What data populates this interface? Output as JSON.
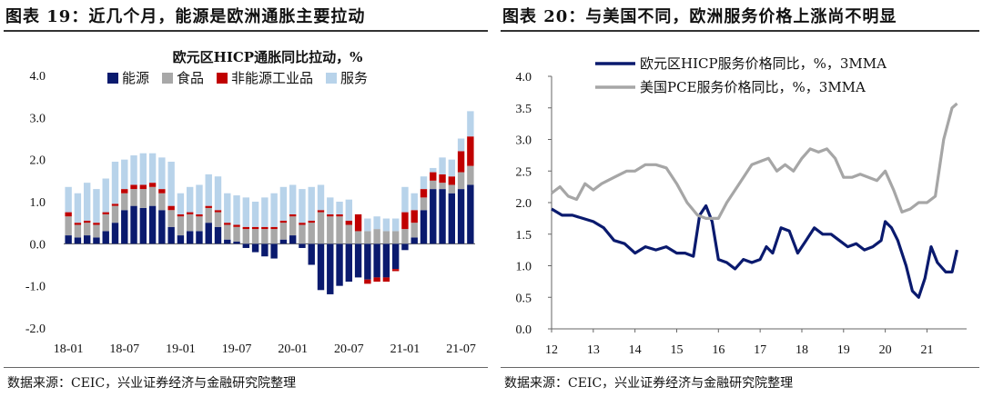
{
  "left": {
    "figure_title": "图表 19：近几个月，能源是欧洲通胀主要拉动",
    "source": "数据来源：CEIC，兴业证券经济与金融研究院整理",
    "chart_data": {
      "type": "bar",
      "stacked": true,
      "title": "欧元区HICP通胀同比拉动，%",
      "ylim": [
        -2.0,
        4.0
      ],
      "yticks": [
        "4.0",
        "3.0",
        "2.0",
        "1.0",
        "0.0",
        "-1.0",
        "-2.0"
      ],
      "ytick_values": [
        4,
        3,
        2,
        1,
        0,
        -1,
        -2
      ],
      "xtick_labels": [
        "18-01",
        "18-07",
        "19-01",
        "19-07",
        "20-01",
        "20-07",
        "21-01",
        "21-07"
      ],
      "xtick_index": [
        0,
        6,
        12,
        18,
        24,
        30,
        36,
        42
      ],
      "categories": [
        "18-01",
        "18-02",
        "18-03",
        "18-04",
        "18-05",
        "18-06",
        "18-07",
        "18-08",
        "18-09",
        "18-10",
        "18-11",
        "18-12",
        "19-01",
        "19-02",
        "19-03",
        "19-04",
        "19-05",
        "19-06",
        "19-07",
        "19-08",
        "19-09",
        "19-10",
        "19-11",
        "19-12",
        "20-01",
        "20-02",
        "20-03",
        "20-04",
        "20-05",
        "20-06",
        "20-07",
        "20-08",
        "20-09",
        "20-10",
        "20-11",
        "20-12",
        "21-01",
        "21-02",
        "21-03",
        "21-04",
        "21-05",
        "21-06",
        "21-07",
        "21-08"
      ],
      "legend": [
        "能源",
        "食品",
        "非能源工业品",
        "服务"
      ],
      "series": [
        {
          "name": "能源",
          "color": "#0a1a6e",
          "values": [
            0.2,
            0.15,
            0.2,
            0.15,
            0.3,
            0.5,
            0.8,
            0.9,
            0.85,
            0.9,
            0.8,
            0.4,
            0.2,
            0.3,
            0.3,
            0.5,
            0.4,
            0.1,
            0.05,
            -0.1,
            -0.2,
            -0.3,
            -0.35,
            0.1,
            0.2,
            -0.1,
            -0.5,
            -1.1,
            -1.2,
            -1.0,
            -0.9,
            -0.8,
            -0.85,
            -0.8,
            -0.8,
            -0.6,
            -0.15,
            0.15,
            0.8,
            1.3,
            1.3,
            1.2,
            1.3,
            1.4
          ]
        },
        {
          "name": "食品",
          "color": "#a8a8a8",
          "values": [
            0.45,
            0.3,
            0.3,
            0.3,
            0.4,
            0.4,
            0.4,
            0.4,
            0.45,
            0.45,
            0.4,
            0.4,
            0.45,
            0.4,
            0.35,
            0.35,
            0.35,
            0.35,
            0.35,
            0.35,
            0.35,
            0.35,
            0.35,
            0.4,
            0.45,
            0.45,
            0.5,
            0.75,
            0.65,
            0.65,
            0.45,
            0.3,
            0.3,
            0.35,
            0.3,
            0.3,
            0.35,
            0.35,
            0.3,
            0.2,
            0.15,
            0.2,
            0.4,
            0.45
          ]
        },
        {
          "name": "非能源工业品",
          "color": "#c00000",
          "values": [
            0.1,
            0.05,
            0.05,
            0.05,
            0.05,
            0.05,
            0.1,
            0.1,
            0.1,
            0.1,
            0.1,
            0.1,
            0.05,
            0.05,
            0.05,
            0.05,
            0.05,
            0.05,
            0.05,
            0.05,
            0.05,
            0.05,
            0.05,
            0.05,
            0.05,
            0.05,
            0.05,
            0.05,
            0.05,
            0.05,
            0.1,
            0.4,
            -0.1,
            -0.1,
            -0.1,
            -0.05,
            0.4,
            0.3,
            0.2,
            0.2,
            0.2,
            0.2,
            0.5,
            0.7
          ]
        },
        {
          "name": "服务",
          "color": "#b8d3ea",
          "values": [
            0.6,
            0.7,
            0.9,
            0.8,
            0.8,
            1.0,
            0.7,
            0.7,
            0.75,
            0.7,
            0.75,
            1.05,
            0.5,
            0.6,
            0.7,
            0.75,
            0.8,
            0.7,
            0.7,
            0.7,
            0.6,
            0.7,
            0.8,
            0.8,
            0.7,
            0.8,
            0.8,
            0.6,
            0.4,
            0.3,
            0.5,
            0.0,
            0.3,
            0.3,
            0.3,
            0.3,
            0.6,
            0.4,
            0.3,
            0.1,
            0.4,
            0.4,
            0.3,
            0.6
          ]
        }
      ]
    }
  },
  "right": {
    "figure_title": "图表 20：与美国不同，欧洲服务价格上涨尚不明显",
    "source": "数据来源：CEIC，兴业证券经济与金融研究院整理",
    "chart_data": {
      "type": "line",
      "xlim": [
        2012,
        2021.95
      ],
      "ylim": [
        0.0,
        4.0
      ],
      "yticks": [
        "4.0",
        "3.5",
        "3.0",
        "2.5",
        "2.0",
        "1.5",
        "1.0",
        "0.5",
        "0.0"
      ],
      "ytick_values": [
        4.0,
        3.5,
        3.0,
        2.5,
        2.0,
        1.5,
        1.0,
        0.5,
        0.0
      ],
      "xtick_labels": [
        "12",
        "13",
        "14",
        "15",
        "16",
        "17",
        "18",
        "19",
        "20",
        "21"
      ],
      "xtick_values": [
        2012,
        2013,
        2014,
        2015,
        2016,
        2017,
        2018,
        2019,
        2020,
        2021
      ],
      "series": [
        {
          "name": "欧元区HICP服务价格同比，%，3MMA",
          "color": "#0a1a6e",
          "x": [
            2012.0,
            2012.25,
            2012.5,
            2012.75,
            2013.0,
            2013.25,
            2013.5,
            2013.75,
            2014.0,
            2014.25,
            2014.5,
            2014.75,
            2015.0,
            2015.2,
            2015.4,
            2015.55,
            2015.7,
            2015.85,
            2016.0,
            2016.2,
            2016.4,
            2016.6,
            2016.8,
            2017.0,
            2017.15,
            2017.3,
            2017.5,
            2017.7,
            2017.9,
            2018.1,
            2018.3,
            2018.5,
            2018.7,
            2018.9,
            2019.1,
            2019.3,
            2019.5,
            2019.7,
            2019.9,
            2020.0,
            2020.15,
            2020.3,
            2020.5,
            2020.65,
            2020.8,
            2020.95,
            2021.1,
            2021.25,
            2021.45,
            2021.6,
            2021.72
          ],
          "y": [
            1.9,
            1.8,
            1.8,
            1.75,
            1.7,
            1.6,
            1.4,
            1.35,
            1.2,
            1.3,
            1.25,
            1.3,
            1.2,
            1.2,
            1.15,
            1.8,
            1.95,
            1.7,
            1.1,
            1.05,
            0.95,
            1.1,
            1.05,
            1.1,
            1.3,
            1.2,
            1.6,
            1.55,
            1.2,
            1.4,
            1.6,
            1.5,
            1.5,
            1.4,
            1.3,
            1.35,
            1.25,
            1.3,
            1.4,
            1.7,
            1.6,
            1.4,
            1.0,
            0.6,
            0.5,
            0.8,
            1.3,
            1.05,
            0.9,
            0.9,
            1.25
          ]
        },
        {
          "name": "美国PCE服务价格同比，%，3MMA",
          "color": "#a6a6a6",
          "x": [
            2012.0,
            2012.2,
            2012.4,
            2012.6,
            2012.8,
            2013.0,
            2013.2,
            2013.5,
            2013.8,
            2014.0,
            2014.25,
            2014.5,
            2014.75,
            2015.0,
            2015.25,
            2015.5,
            2015.7,
            2015.9,
            2016.0,
            2016.2,
            2016.5,
            2016.8,
            2017.0,
            2017.2,
            2017.4,
            2017.6,
            2017.8,
            2018.0,
            2018.2,
            2018.4,
            2018.6,
            2018.8,
            2019.0,
            2019.2,
            2019.4,
            2019.6,
            2019.8,
            2020.0,
            2020.2,
            2020.4,
            2020.6,
            2020.8,
            2021.0,
            2021.2,
            2021.4,
            2021.6,
            2021.72
          ],
          "y": [
            2.15,
            2.25,
            2.1,
            2.05,
            2.3,
            2.2,
            2.3,
            2.4,
            2.5,
            2.5,
            2.6,
            2.6,
            2.55,
            2.3,
            2.0,
            1.8,
            1.75,
            1.75,
            1.75,
            2.0,
            2.3,
            2.6,
            2.65,
            2.7,
            2.5,
            2.6,
            2.5,
            2.7,
            2.85,
            2.8,
            2.85,
            2.7,
            2.4,
            2.4,
            2.45,
            2.4,
            2.35,
            2.5,
            2.2,
            1.85,
            1.9,
            2.0,
            2.0,
            2.1,
            3.0,
            3.5,
            3.57
          ]
        }
      ]
    }
  }
}
